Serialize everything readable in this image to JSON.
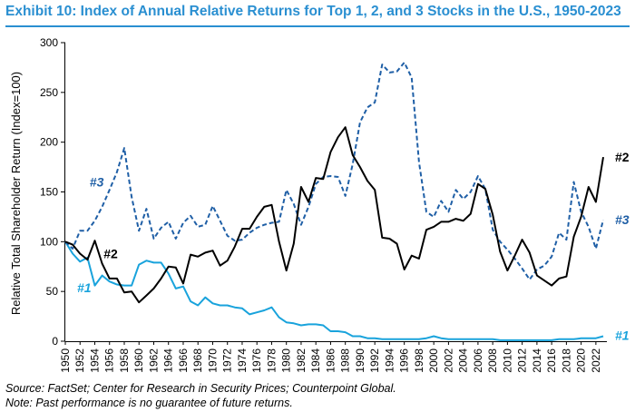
{
  "title": "Exhibit 10: Index of Annual Relative Returns for Top 1, 2, and 3 Stocks in the U.S., 1950-2023",
  "source": "Source: FactSet; Center for Research in Security Prices; Counterpoint Global.",
  "note": "Note: Past performance is no guarantee of future returns.",
  "colors": {
    "title": "#2a8fd1",
    "top1": "#19a3dc",
    "top2": "#000000",
    "top3": "#1f5fa6"
  },
  "chart_data": {
    "type": "line",
    "ylabel": "Relative Total Shareholder Return (Index=100)",
    "xlabel": "",
    "ylim": [
      0,
      300
    ],
    "yticks": [
      0,
      50,
      100,
      150,
      200,
      250,
      300
    ],
    "xlim": [
      1950,
      2023
    ],
    "xticks": [
      "1950",
      "1952",
      "1954",
      "1956",
      "1958",
      "1960",
      "1962",
      "1964",
      "1966",
      "1968",
      "1970",
      "1972",
      "1974",
      "1976",
      "1978",
      "1980",
      "1982",
      "1984",
      "1986",
      "1988",
      "1990",
      "1992",
      "1994",
      "1996",
      "1998",
      "2000",
      "2002",
      "2004",
      "2006",
      "2008",
      "2010",
      "2012",
      "2014",
      "2016",
      "2018",
      "2020",
      "2022"
    ],
    "grid": false,
    "series": [
      {
        "name": "#1",
        "label": "#1",
        "style": "solid",
        "color": "#19a3dc",
        "x": [
          1950,
          1951,
          1952,
          1953,
          1954,
          1955,
          1956,
          1957,
          1958,
          1959,
          1960,
          1961,
          1962,
          1963,
          1964,
          1965,
          1966,
          1967,
          1968,
          1969,
          1970,
          1971,
          1972,
          1973,
          1974,
          1975,
          1976,
          1977,
          1978,
          1979,
          1980,
          1981,
          1982,
          1983,
          1984,
          1985,
          1986,
          1987,
          1988,
          1989,
          1990,
          1991,
          1992,
          1993,
          1994,
          1995,
          1996,
          1997,
          1998,
          1999,
          2000,
          2001,
          2002,
          2003,
          2004,
          2005,
          2006,
          2007,
          2008,
          2009,
          2010,
          2011,
          2012,
          2013,
          2014,
          2015,
          2016,
          2017,
          2018,
          2019,
          2020,
          2021,
          2022,
          2023
        ],
        "values": [
          100,
          88,
          80,
          84,
          56,
          66,
          60,
          57,
          56,
          56,
          77,
          81,
          79,
          79,
          68,
          53,
          55,
          40,
          36,
          44,
          38,
          36,
          36,
          34,
          33,
          27,
          29,
          31,
          34,
          24,
          19,
          18,
          16,
          17,
          17,
          16,
          10,
          10,
          9,
          5,
          5,
          3,
          3,
          2,
          2,
          2,
          2,
          2,
          2,
          3,
          5,
          3,
          2,
          2,
          2,
          2,
          2,
          2,
          2,
          1,
          1,
          1,
          1,
          1,
          1,
          1,
          1,
          2,
          2,
          2,
          3,
          3,
          3,
          5
        ]
      },
      {
        "name": "#2",
        "label": "#2",
        "style": "solid",
        "color": "#000000",
        "x": [
          1950,
          1951,
          1952,
          1953,
          1954,
          1955,
          1956,
          1957,
          1958,
          1959,
          1960,
          1961,
          1962,
          1963,
          1964,
          1965,
          1966,
          1967,
          1968,
          1969,
          1970,
          1971,
          1972,
          1973,
          1974,
          1975,
          1976,
          1977,
          1978,
          1979,
          1980,
          1981,
          1982,
          1983,
          1984,
          1985,
          1986,
          1987,
          1988,
          1989,
          1990,
          1991,
          1992,
          1993,
          1994,
          1995,
          1996,
          1997,
          1998,
          1999,
          2000,
          2001,
          2002,
          2003,
          2004,
          2005,
          2006,
          2007,
          2008,
          2009,
          2010,
          2011,
          2012,
          2013,
          2014,
          2015,
          2016,
          2017,
          2018,
          2019,
          2020,
          2021,
          2022,
          2023
        ],
        "values": [
          100,
          97,
          88,
          82,
          101,
          78,
          63,
          63,
          49,
          50,
          39,
          46,
          53,
          63,
          75,
          74,
          58,
          87,
          85,
          89,
          91,
          76,
          81,
          95,
          113,
          113,
          125,
          135,
          137,
          100,
          71,
          98,
          155,
          140,
          164,
          163,
          190,
          205,
          215,
          187,
          175,
          161,
          152,
          104,
          103,
          98,
          72,
          86,
          83,
          112,
          115,
          120,
          120,
          123,
          121,
          128,
          158,
          153,
          127,
          90,
          71,
          86,
          102,
          89,
          66,
          61,
          56,
          63,
          65,
          105,
          125,
          155,
          140,
          185
        ]
      },
      {
        "name": "#3",
        "label": "#3",
        "style": "dashed",
        "color": "#1f5fa6",
        "x": [
          1950,
          1951,
          1952,
          1953,
          1954,
          1955,
          1956,
          1957,
          1958,
          1959,
          1960,
          1961,
          1962,
          1963,
          1964,
          1965,
          1966,
          1967,
          1968,
          1969,
          1970,
          1971,
          1972,
          1973,
          1974,
          1975,
          1976,
          1977,
          1978,
          1979,
          1980,
          1981,
          1982,
          1983,
          1984,
          1985,
          1986,
          1987,
          1988,
          1989,
          1990,
          1991,
          1992,
          1993,
          1994,
          1995,
          1996,
          1997,
          1998,
          1999,
          2000,
          2001,
          2002,
          2003,
          2004,
          2005,
          2006,
          2007,
          2008,
          2009,
          2010,
          2011,
          2012,
          2013,
          2014,
          2015,
          2016,
          2017,
          2018,
          2019,
          2020,
          2021,
          2022,
          2023
        ],
        "values": [
          100,
          93,
          111,
          111,
          121,
          135,
          152,
          170,
          194,
          145,
          111,
          133,
          103,
          114,
          120,
          103,
          119,
          126,
          115,
          117,
          136,
          121,
          106,
          101,
          102,
          109,
          114,
          117,
          119,
          120,
          152,
          138,
          117,
          135,
          158,
          165,
          166,
          165,
          146,
          178,
          220,
          235,
          240,
          278,
          270,
          271,
          280,
          265,
          180,
          130,
          125,
          141,
          130,
          152,
          143,
          150,
          166,
          153,
          112,
          100,
          92,
          83,
          73,
          62,
          72,
          76,
          85,
          109,
          102,
          160,
          130,
          115,
          93,
          122
        ]
      }
    ],
    "annotations": [
      {
        "text": "#3",
        "x": 1953.3,
        "y": 160,
        "series": "#3"
      },
      {
        "text": "#2",
        "x": 1955.2,
        "y": 88,
        "series": "#2"
      },
      {
        "text": "#1",
        "x": 1951.6,
        "y": 54,
        "series": "#1"
      },
      {
        "text": "#2",
        "x": 2024.6,
        "y": 185,
        "series": "#2"
      },
      {
        "text": "#3",
        "x": 2024.6,
        "y": 122,
        "series": "#3"
      },
      {
        "text": "#1",
        "x": 2024.6,
        "y": 6,
        "series": "#1"
      }
    ]
  }
}
